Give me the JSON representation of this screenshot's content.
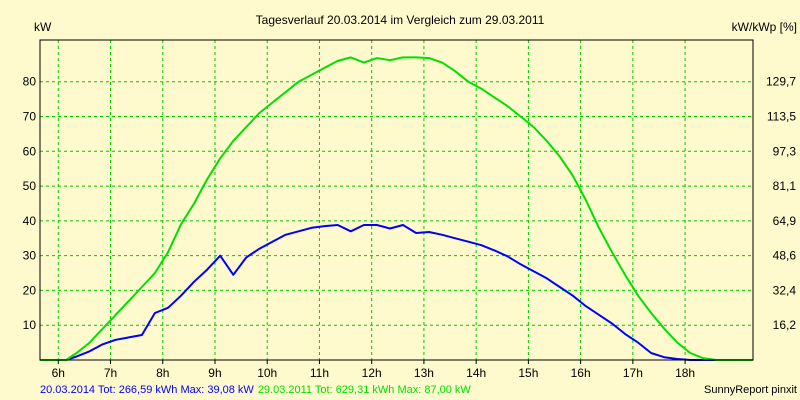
{
  "chart_data": {
    "type": "line",
    "title": "Tagesverlauf 20.03.2014 im Vergleich zum 29.03.2011",
    "ylabel_left": "kW",
    "ylabel_right": "kW/kWp [%]",
    "xlim": [
      5.65,
      19.3
    ],
    "ylim": [
      0,
      92
    ],
    "grid": true,
    "x_ticks": [
      {
        "value": 6,
        "label": "6h"
      },
      {
        "value": 7,
        "label": "7h"
      },
      {
        "value": 8,
        "label": "8h"
      },
      {
        "value": 9,
        "label": "9h"
      },
      {
        "value": 10,
        "label": "10h"
      },
      {
        "value": 11,
        "label": "11h"
      },
      {
        "value": 12,
        "label": "12h"
      },
      {
        "value": 13,
        "label": "13h"
      },
      {
        "value": 14,
        "label": "14h"
      },
      {
        "value": 15,
        "label": "15h"
      },
      {
        "value": 16,
        "label": "16h"
      },
      {
        "value": 17,
        "label": "17h"
      },
      {
        "value": 18,
        "label": "18h"
      }
    ],
    "y_ticks_left": [
      {
        "value": 10,
        "label": "10"
      },
      {
        "value": 20,
        "label": "20"
      },
      {
        "value": 30,
        "label": "30"
      },
      {
        "value": 40,
        "label": "40"
      },
      {
        "value": 50,
        "label": "50"
      },
      {
        "value": 60,
        "label": "60"
      },
      {
        "value": 70,
        "label": "70"
      },
      {
        "value": 80,
        "label": "80"
      }
    ],
    "y_ticks_right": [
      {
        "value": 10,
        "label": "16,2"
      },
      {
        "value": 20,
        "label": "32,4"
      },
      {
        "value": 30,
        "label": "48,6"
      },
      {
        "value": 40,
        "label": "64,9"
      },
      {
        "value": 50,
        "label": "81,1"
      },
      {
        "value": 60,
        "label": "97,3"
      },
      {
        "value": 70,
        "label": "113,5"
      },
      {
        "value": 80,
        "label": "129,7"
      }
    ],
    "series": [
      {
        "color": "#0000ff",
        "points": [
          [
            5.65,
            0
          ],
          [
            6.15,
            0
          ],
          [
            6.35,
            1
          ],
          [
            6.6,
            2.5
          ],
          [
            6.85,
            4.5
          ],
          [
            7.1,
            5.8
          ],
          [
            7.35,
            6.5
          ],
          [
            7.6,
            7.2
          ],
          [
            7.85,
            13.5
          ],
          [
            8.1,
            15
          ],
          [
            8.35,
            18.5
          ],
          [
            8.6,
            22.5
          ],
          [
            8.85,
            26
          ],
          [
            9.1,
            30
          ],
          [
            9.35,
            24.5
          ],
          [
            9.6,
            29.5
          ],
          [
            9.85,
            32
          ],
          [
            10.1,
            34
          ],
          [
            10.35,
            36
          ],
          [
            10.6,
            37
          ],
          [
            10.85,
            38
          ],
          [
            11.1,
            38.5
          ],
          [
            11.35,
            38.8
          ],
          [
            11.6,
            37
          ],
          [
            11.85,
            38.8
          ],
          [
            12.1,
            38.8
          ],
          [
            12.35,
            37.8
          ],
          [
            12.6,
            38.8
          ],
          [
            12.85,
            36.5
          ],
          [
            13.1,
            36.8
          ],
          [
            13.35,
            36
          ],
          [
            13.6,
            35
          ],
          [
            13.85,
            34
          ],
          [
            14.1,
            33
          ],
          [
            14.35,
            31.5
          ],
          [
            14.6,
            29.8
          ],
          [
            14.85,
            27.5
          ],
          [
            15.1,
            25.5
          ],
          [
            15.35,
            23.5
          ],
          [
            15.6,
            21
          ],
          [
            15.85,
            18.5
          ],
          [
            16.1,
            15.5
          ],
          [
            16.35,
            13
          ],
          [
            16.6,
            10.5
          ],
          [
            16.85,
            7.5
          ],
          [
            17.1,
            5
          ],
          [
            17.35,
            2
          ],
          [
            17.6,
            0.8
          ],
          [
            17.85,
            0.3
          ],
          [
            18.1,
            0
          ],
          [
            19.3,
            0
          ]
        ]
      },
      {
        "color": "#00e000",
        "points": [
          [
            5.65,
            0
          ],
          [
            6.15,
            0
          ],
          [
            6.35,
            2
          ],
          [
            6.6,
            5
          ],
          [
            6.85,
            9
          ],
          [
            7.1,
            13
          ],
          [
            7.35,
            17
          ],
          [
            7.6,
            21
          ],
          [
            7.85,
            25
          ],
          [
            8.1,
            31
          ],
          [
            8.35,
            39
          ],
          [
            8.6,
            45
          ],
          [
            8.85,
            52
          ],
          [
            9.1,
            58
          ],
          [
            9.35,
            63
          ],
          [
            9.6,
            67
          ],
          [
            9.85,
            71
          ],
          [
            10.1,
            74
          ],
          [
            10.35,
            77
          ],
          [
            10.6,
            80
          ],
          [
            10.85,
            82
          ],
          [
            11.1,
            84
          ],
          [
            11.35,
            86
          ],
          [
            11.6,
            87
          ],
          [
            11.85,
            85.5
          ],
          [
            12.1,
            86.8
          ],
          [
            12.35,
            86.2
          ],
          [
            12.6,
            87
          ],
          [
            12.85,
            87
          ],
          [
            13.1,
            86.8
          ],
          [
            13.35,
            85.5
          ],
          [
            13.6,
            83
          ],
          [
            13.85,
            80
          ],
          [
            14.1,
            78
          ],
          [
            14.35,
            75.5
          ],
          [
            14.6,
            73
          ],
          [
            14.85,
            70
          ],
          [
            15.1,
            67
          ],
          [
            15.35,
            63
          ],
          [
            15.6,
            58.5
          ],
          [
            15.85,
            53
          ],
          [
            16.1,
            46
          ],
          [
            16.35,
            38
          ],
          [
            16.6,
            31
          ],
          [
            16.85,
            24.5
          ],
          [
            17.1,
            18.5
          ],
          [
            17.35,
            13.5
          ],
          [
            17.6,
            9
          ],
          [
            17.85,
            5
          ],
          [
            18.1,
            2
          ],
          [
            18.35,
            0.5
          ],
          [
            18.6,
            0
          ],
          [
            19.3,
            0
          ]
        ]
      }
    ],
    "footer": {
      "segment1": "20.03.2014 Tot: 266,59 kWh Max: 39,08 kW",
      "segment2": "29.03.2011 Tot: 629,31 kWh Max: 87,00 kW",
      "segment1_color": "#0000ff",
      "segment2_color": "#00e000",
      "credit": "SunnyReport pinxit"
    }
  }
}
